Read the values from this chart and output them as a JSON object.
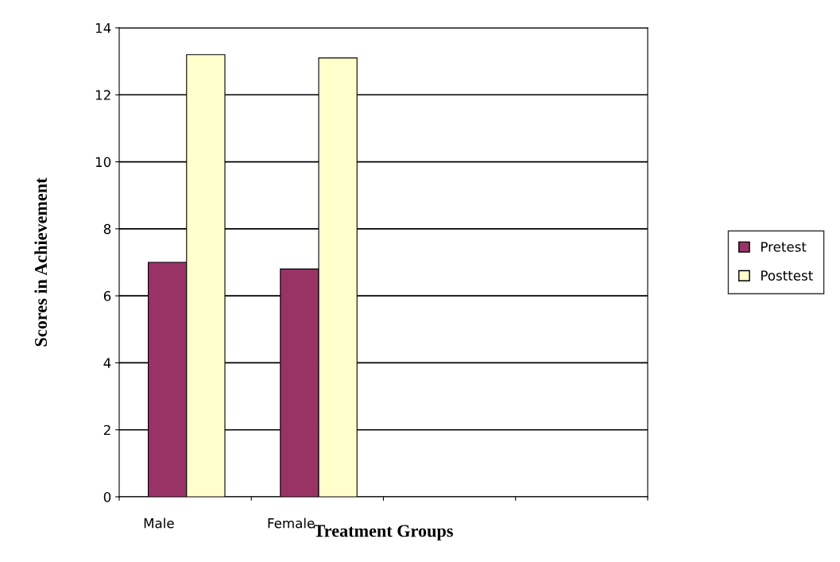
{
  "chart_data": {
    "type": "bar",
    "xlabel": "Treatment Groups",
    "ylabel": "Scores in Achievement",
    "categories": [
      "Male",
      "Female",
      null,
      null
    ],
    "series": [
      {
        "name": "Pretest",
        "color": "#993366",
        "values": [
          7.0,
          6.8,
          null,
          null
        ]
      },
      {
        "name": "Posttest",
        "color": "#ffffcc",
        "values": [
          13.2,
          13.1,
          null,
          null
        ]
      }
    ],
    "ylim": [
      0,
      14
    ],
    "yticks": [
      0,
      2,
      4,
      6,
      8,
      10,
      12,
      14
    ],
    "grid": "y",
    "legend": "right"
  }
}
